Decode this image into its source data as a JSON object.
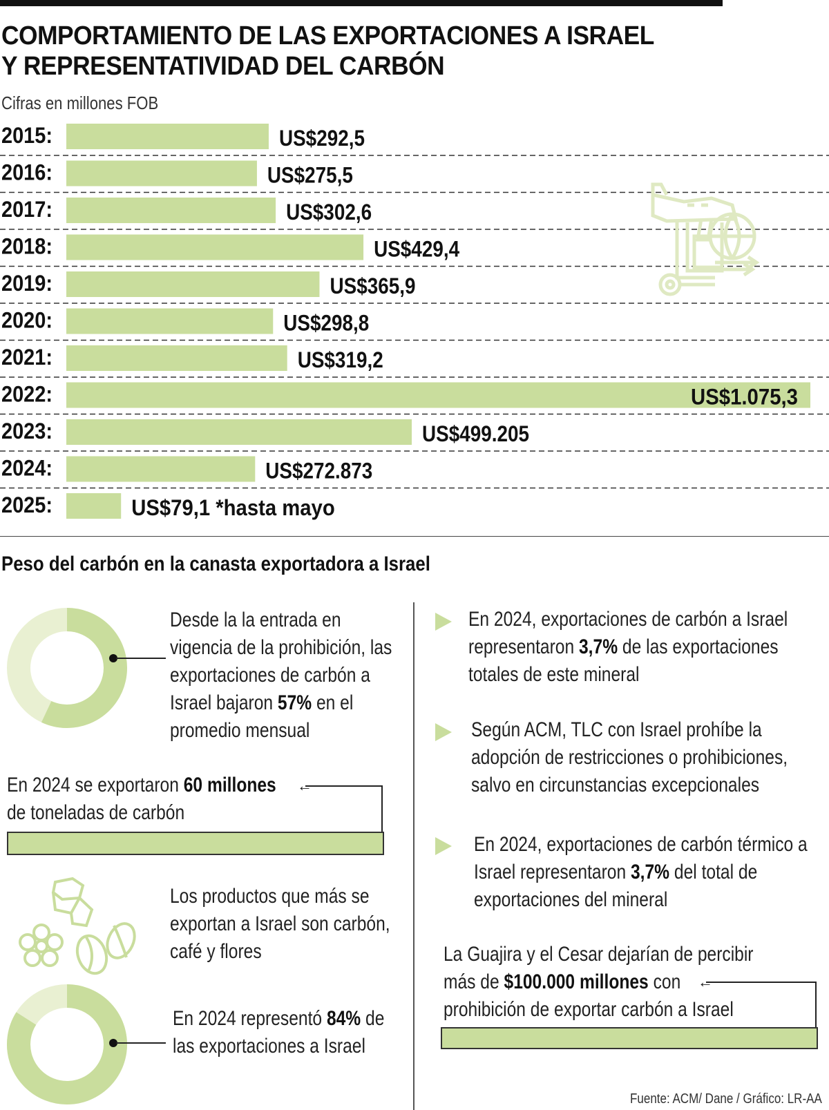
{
  "title_line1": "COMPORTAMIENTO DE LAS EXPORTACIONES A ISRAEL",
  "title_line2": "Y REPRESENTATIVIDAD DEL CARBÓN",
  "subtitle": "Cifras en millones FOB",
  "colors": {
    "bar": "#c9dd9d",
    "bar_light": "#e9f0d2",
    "text": "#111111",
    "icon": "#dfe9c2"
  },
  "chart_data": {
    "type": "bar",
    "orientation": "horizontal",
    "categories": [
      "2015:",
      "2016:",
      "2017:",
      "2018:",
      "2019:",
      "2020:",
      "2021:",
      "2022:",
      "2023:",
      "2024:",
      "2025:"
    ],
    "values": [
      292.5,
      275.5,
      302.6,
      429.4,
      365.9,
      298.8,
      319.2,
      1075.3,
      499.205,
      272.873,
      79.1
    ],
    "value_labels": [
      "US$292,5",
      "US$275,5",
      "US$302,6",
      "US$429,4",
      "US$365,9",
      "US$298,8",
      "US$319,2",
      "US$1.075,3",
      "US$499.205",
      "US$272.873",
      "US$79,1 *hasta mayo"
    ],
    "xlim": [
      0,
      1075.3
    ],
    "grid": "dashed horizontal separators"
  },
  "section_title": "Peso del carbón en la canasta exportadora a Israel",
  "donut1": {
    "value": 57,
    "text_pre": "Desde la la entrada en vigencia de la prohibición, las exportaciones de carbón a Israel bajaron ",
    "text_bold": "57%",
    "text_post": " en el promedio mensual",
    "lines": [
      "Desde la la entrada en",
      "vigencia de la prohibición, las",
      "exportaciones de carbón a",
      "Israel bajaron ",
      "57%",
      " en el",
      "promedio mensual"
    ]
  },
  "tons": {
    "line1_pre": "En 2024 se exportaron ",
    "line1_bold": "60 millones",
    "line2": "de toneladas de carbón"
  },
  "products": {
    "lines": [
      "Los productos que más se",
      "exportan a Israel son carbón,",
      "café y flores"
    ],
    "icons": [
      "coal-icon",
      "flower-icon",
      "coffee-bean-icon"
    ]
  },
  "donut2": {
    "value": 84,
    "line1_pre": "En 2024 representó ",
    "line1_bold": "84%",
    "line1_post": " de",
    "line2": "las exportaciones a Israel"
  },
  "bullets": [
    {
      "l1": "En 2024, exportaciones de carbón a Israel",
      "l2_pre": "representaron ",
      "l2_bold": "3,7%",
      "l2_post": " de las exportaciones",
      "l3": "totales de este mineral"
    },
    {
      "l1": "Según ACM, TLC con Israel prohíbe la",
      "l2": "adopción de restricciones o prohibiciones,",
      "l3": "salvo en circunstancias excepcionales"
    },
    {
      "l1": "En 2024, exportaciones de carbón térmico a",
      "l2_pre": "Israel representaron ",
      "l2_bold": "3,7%",
      "l2_post": " del total de",
      "l3": "exportaciones del mineral"
    }
  ],
  "guajira": {
    "l1": "La Guajira y el Cesar dejarían de percibir",
    "l2_pre": "más de ",
    "l2_bold": "$100.000 millones",
    "l2_post": " con",
    "l3": "prohibición de exportar carbón a Israel"
  },
  "source": "Fuente: ACM/ Dane / Gráfico: LR-AA"
}
